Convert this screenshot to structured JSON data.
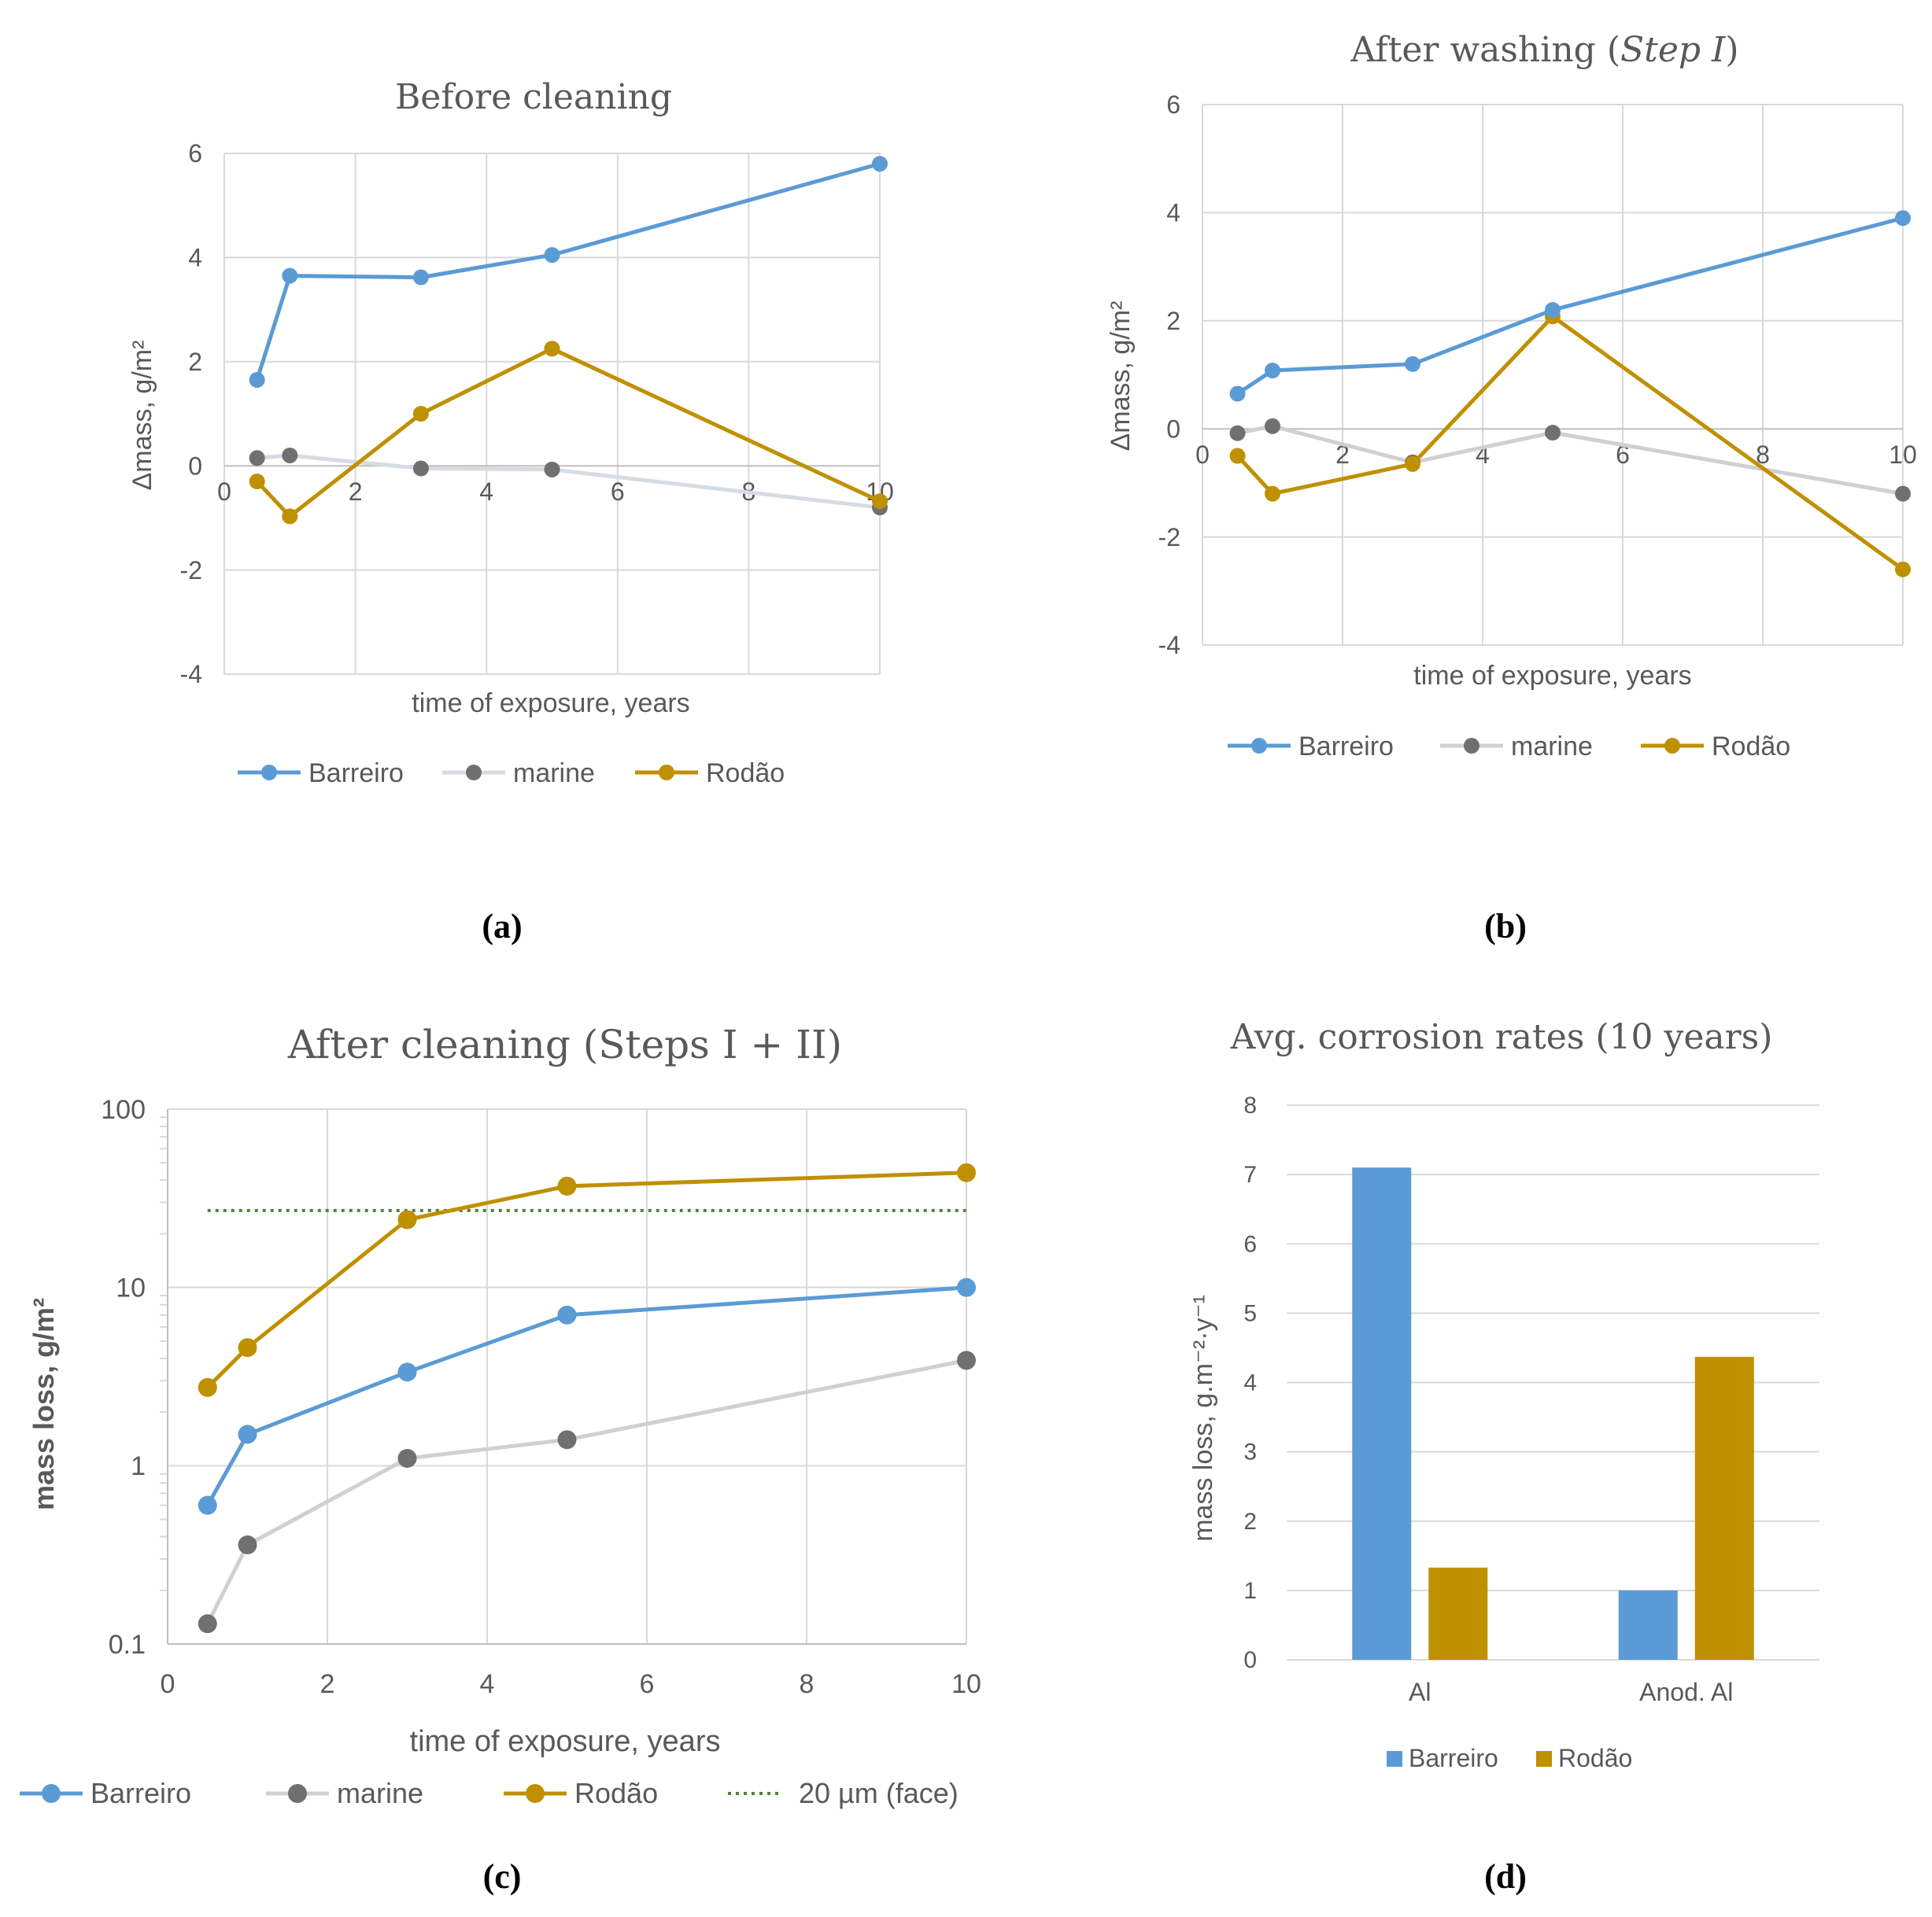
{
  "colors": {
    "Barreiro": "#5b9bd5",
    "marine_a": "#d6dce4",
    "marine": "#d0d0d0",
    "marine_marker": "#707070",
    "Rodão": "#bf9000",
    "threshold": "#538135",
    "grid": "#d9d9d9",
    "text": "#595959"
  },
  "chart_data": [
    {
      "id": "a",
      "type": "line",
      "panel_label": "(a)",
      "title": "Before cleaning",
      "xlabel": "time of exposure, years",
      "ylabel": "Δmass, g/m²",
      "xlim": [
        0,
        10
      ],
      "ylim": [
        -4,
        6
      ],
      "xticks": [
        0,
        2,
        4,
        6,
        8,
        10
      ],
      "yticks": [
        -4,
        -2,
        0,
        2,
        4,
        6
      ],
      "x_axis_at_zero": true,
      "legend_position": "bottom",
      "series": [
        {
          "name": "Barreiro",
          "x": [
            0.5,
            1,
            3,
            5,
            10
          ],
          "y": [
            1.65,
            3.65,
            3.62,
            4.05,
            5.8
          ]
        },
        {
          "name": "marine",
          "x": [
            0.5,
            1,
            3,
            5,
            10
          ],
          "y": [
            0.15,
            0.2,
            -0.05,
            -0.07,
            -0.8
          ]
        },
        {
          "name": "Rodão",
          "x": [
            0.5,
            1,
            3,
            5,
            10
          ],
          "y": [
            -0.3,
            -0.97,
            1.0,
            2.25,
            -0.68
          ]
        }
      ]
    },
    {
      "id": "b",
      "type": "line",
      "panel_label": "(b)",
      "title": "After washing (",
      "title_italic": "Step I",
      "title_end": ")",
      "xlabel": "time of exposure, years",
      "ylabel": "Δmass, g/m²",
      "xlim": [
        0,
        10
      ],
      "ylim": [
        -4,
        6
      ],
      "xticks": [
        0,
        2,
        4,
        6,
        8,
        10
      ],
      "yticks": [
        -4,
        -2,
        0,
        2,
        4,
        6
      ],
      "x_axis_at_zero": true,
      "legend_position": "bottom",
      "series": [
        {
          "name": "Barreiro",
          "x": [
            0.5,
            1,
            3,
            5,
            10
          ],
          "y": [
            0.65,
            1.08,
            1.2,
            2.2,
            3.9
          ]
        },
        {
          "name": "marine",
          "x": [
            0.5,
            1,
            3,
            5,
            10
          ],
          "y": [
            -0.08,
            0.05,
            -0.62,
            -0.07,
            -1.2
          ]
        },
        {
          "name": "Rodão",
          "x": [
            0.5,
            1,
            3,
            5,
            10
          ],
          "y": [
            -0.5,
            -1.2,
            -0.65,
            2.08,
            -2.6
          ]
        }
      ]
    },
    {
      "id": "c",
      "type": "line",
      "panel_label": "(c)",
      "title": "After cleaning (Steps I + II)",
      "xlabel": "time of exposure, years",
      "ylabel": "mass loss, g/m²",
      "yscale": "log",
      "xlim": [
        0,
        10
      ],
      "ylim": [
        0.1,
        100
      ],
      "xticks": [
        0,
        2,
        4,
        6,
        8,
        10
      ],
      "yticks": [
        0.1,
        1,
        10,
        100
      ],
      "ytick_labels": [
        "0.1",
        "1",
        "10",
        "100"
      ],
      "legend_position": "bottom",
      "series": [
        {
          "name": "Barreiro",
          "x": [
            0.5,
            1,
            3,
            5,
            10
          ],
          "y": [
            0.6,
            1.5,
            3.35,
            7.0,
            10.0
          ]
        },
        {
          "name": "marine",
          "x": [
            0.5,
            1,
            3,
            5,
            10
          ],
          "y": [
            0.13,
            0.36,
            1.1,
            1.4,
            3.9
          ]
        },
        {
          "name": "Rodão",
          "x": [
            0.5,
            1,
            3,
            5,
            10
          ],
          "y": [
            2.75,
            4.6,
            24,
            37,
            44
          ]
        }
      ],
      "reference_line": {
        "name": "20 µm (face)",
        "y": 27,
        "x": [
          0.5,
          10
        ]
      }
    },
    {
      "id": "d",
      "type": "bar",
      "panel_label": "(d)",
      "title": "Avg. corrosion rates (10 years)",
      "xlabel": "",
      "ylabel": "mass loss, g.m⁻²·y⁻¹",
      "ylim": [
        0,
        8
      ],
      "yticks": [
        0,
        1,
        2,
        3,
        4,
        5,
        6,
        7,
        8
      ],
      "categories": [
        "Al",
        "Anod. Al"
      ],
      "legend_position": "bottom",
      "series": [
        {
          "name": "Barreiro",
          "values": [
            7.1,
            1.0
          ]
        },
        {
          "name": "Rodão",
          "values": [
            1.33,
            4.37
          ]
        }
      ]
    }
  ]
}
